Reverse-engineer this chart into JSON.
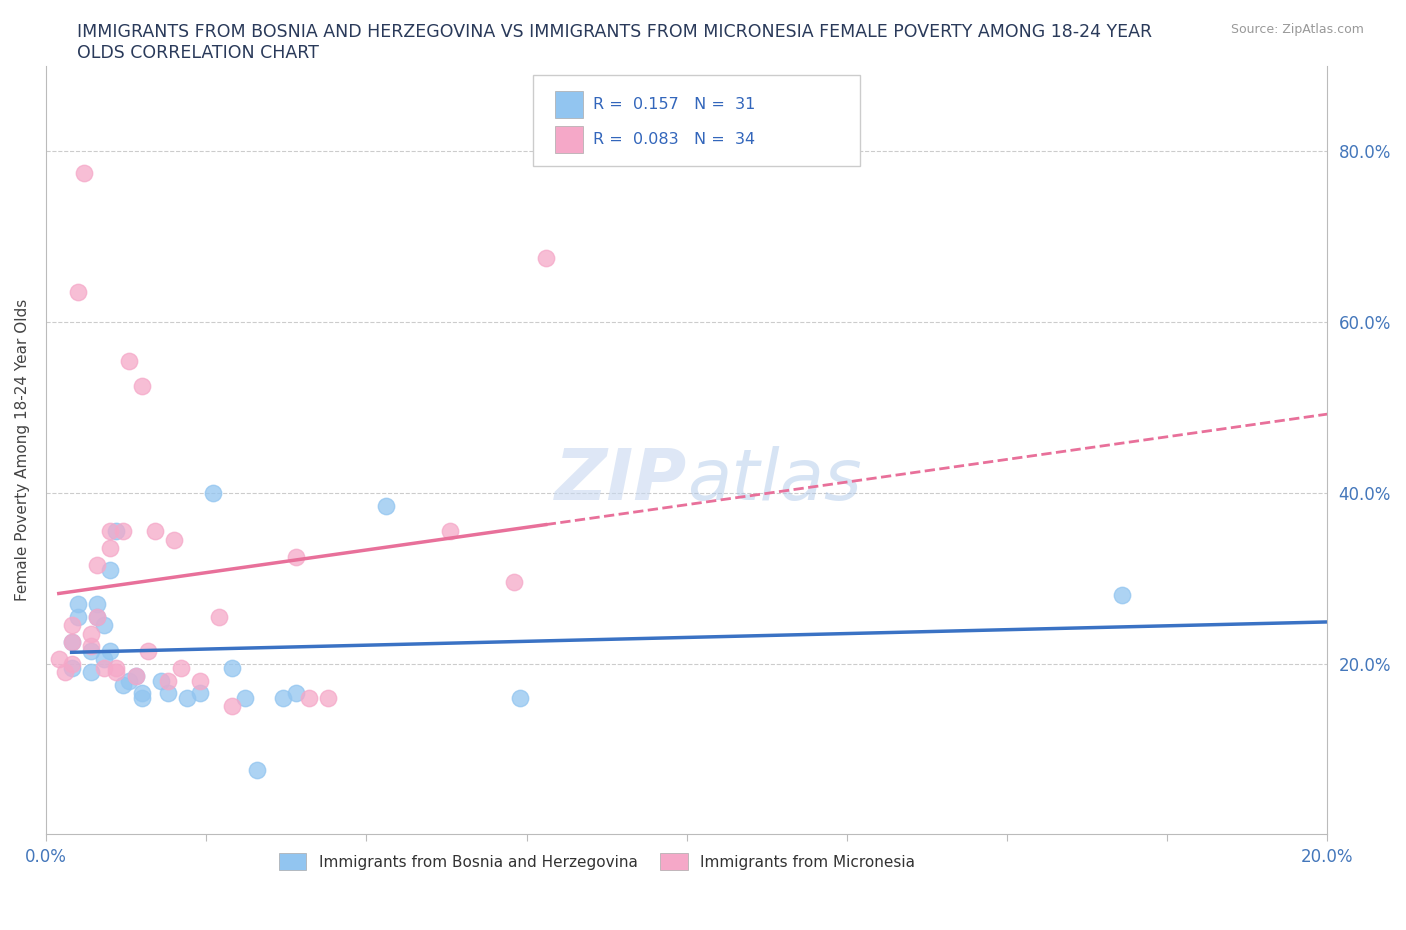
{
  "title_line1": "IMMIGRANTS FROM BOSNIA AND HERZEGOVINA VS IMMIGRANTS FROM MICRONESIA FEMALE POVERTY AMONG 18-24 YEAR",
  "title_line2": "OLDS CORRELATION CHART",
  "ylabel": "Female Poverty Among 18-24 Year Olds",
  "source_text": "Source: ZipAtlas.com",
  "legend1_label": "Immigrants from Bosnia and Herzegovina",
  "legend2_label": "Immigrants from Micronesia",
  "R1": 0.157,
  "N1": 31,
  "R2": 0.083,
  "N2": 34,
  "color1": "#92c5f0",
  "color2": "#f5a8c8",
  "trendline1_color": "#3a72c4",
  "trendline2_color": "#e8709a",
  "watermark_zip": "ZIP",
  "watermark_atlas": "atlas",
  "xlim": [
    0.0,
    0.2
  ],
  "ylim": [
    0.0,
    0.9
  ],
  "xtick_labeled": [
    0.0,
    0.2
  ],
  "xtick_minor": [
    0.025,
    0.05,
    0.075,
    0.1,
    0.125,
    0.15,
    0.175
  ],
  "yticks": [
    0.2,
    0.4,
    0.6,
    0.8
  ],
  "scatter_bosnia": [
    [
      0.004,
      0.195
    ],
    [
      0.004,
      0.225
    ],
    [
      0.005,
      0.255
    ],
    [
      0.005,
      0.27
    ],
    [
      0.007,
      0.19
    ],
    [
      0.007,
      0.215
    ],
    [
      0.008,
      0.27
    ],
    [
      0.008,
      0.255
    ],
    [
      0.009,
      0.205
    ],
    [
      0.009,
      0.245
    ],
    [
      0.01,
      0.215
    ],
    [
      0.01,
      0.31
    ],
    [
      0.011,
      0.355
    ],
    [
      0.012,
      0.175
    ],
    [
      0.013,
      0.18
    ],
    [
      0.014,
      0.185
    ],
    [
      0.015,
      0.16
    ],
    [
      0.015,
      0.165
    ],
    [
      0.018,
      0.18
    ],
    [
      0.019,
      0.165
    ],
    [
      0.022,
      0.16
    ],
    [
      0.024,
      0.165
    ],
    [
      0.026,
      0.4
    ],
    [
      0.029,
      0.195
    ],
    [
      0.031,
      0.16
    ],
    [
      0.033,
      0.075
    ],
    [
      0.037,
      0.16
    ],
    [
      0.039,
      0.165
    ],
    [
      0.053,
      0.385
    ],
    [
      0.074,
      0.16
    ],
    [
      0.168,
      0.28
    ]
  ],
  "scatter_micronesia": [
    [
      0.002,
      0.205
    ],
    [
      0.003,
      0.19
    ],
    [
      0.004,
      0.2
    ],
    [
      0.004,
      0.245
    ],
    [
      0.004,
      0.225
    ],
    [
      0.005,
      0.635
    ],
    [
      0.006,
      0.775
    ],
    [
      0.007,
      0.22
    ],
    [
      0.007,
      0.235
    ],
    [
      0.008,
      0.255
    ],
    [
      0.008,
      0.315
    ],
    [
      0.009,
      0.195
    ],
    [
      0.01,
      0.335
    ],
    [
      0.01,
      0.355
    ],
    [
      0.011,
      0.19
    ],
    [
      0.011,
      0.195
    ],
    [
      0.012,
      0.355
    ],
    [
      0.013,
      0.555
    ],
    [
      0.014,
      0.185
    ],
    [
      0.015,
      0.525
    ],
    [
      0.016,
      0.215
    ],
    [
      0.017,
      0.355
    ],
    [
      0.019,
      0.18
    ],
    [
      0.02,
      0.345
    ],
    [
      0.021,
      0.195
    ],
    [
      0.024,
      0.18
    ],
    [
      0.027,
      0.255
    ],
    [
      0.029,
      0.15
    ],
    [
      0.039,
      0.325
    ],
    [
      0.041,
      0.16
    ],
    [
      0.044,
      0.16
    ],
    [
      0.063,
      0.355
    ],
    [
      0.073,
      0.295
    ],
    [
      0.078,
      0.675
    ]
  ]
}
